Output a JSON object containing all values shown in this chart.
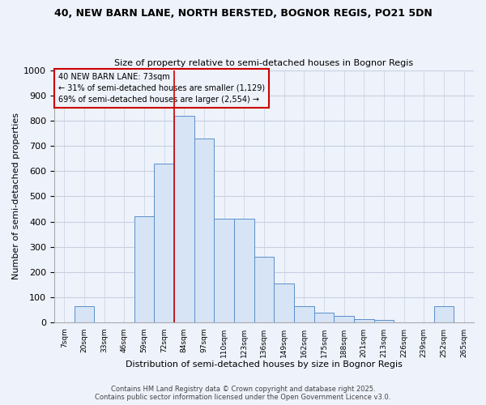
{
  "title1": "40, NEW BARN LANE, NORTH BERSTED, BOGNOR REGIS, PO21 5DN",
  "title2": "Size of property relative to semi-detached houses in Bognor Regis",
  "xlabel": "Distribution of semi-detached houses by size in Bognor Regis",
  "ylabel": "Number of semi-detached properties",
  "annotation_title": "40 NEW BARN LANE: 73sqm",
  "annotation_line1": "← 31% of semi-detached houses are smaller (1,129)",
  "annotation_line2": "69% of semi-detached houses are larger (2,554) →",
  "footer": "Contains HM Land Registry data © Crown copyright and database right 2025.\nContains public sector information licensed under the Open Government Licence v3.0.",
  "bar_labels": [
    "7sqm",
    "20sqm",
    "33sqm",
    "46sqm",
    "59sqm",
    "72sqm",
    "84sqm",
    "97sqm",
    "110sqm",
    "123sqm",
    "136sqm",
    "149sqm",
    "162sqm",
    "175sqm",
    "188sqm",
    "201sqm",
    "213sqm",
    "226sqm",
    "239sqm",
    "252sqm",
    "265sqm"
  ],
  "bar_values": [
    0,
    65,
    0,
    0,
    420,
    630,
    820,
    730,
    410,
    410,
    260,
    155,
    65,
    40,
    25,
    15,
    10,
    0,
    0,
    65,
    0
  ],
  "bar_color": "#d6e4f5",
  "bar_edge_color": "#5b8fc9",
  "vline_x": 5.5,
  "vline_color": "#cc0000",
  "ylim": [
    0,
    1000
  ],
  "yticks": [
    0,
    100,
    200,
    300,
    400,
    500,
    600,
    700,
    800,
    900,
    1000
  ],
  "annotation_box_color": "#cc0000",
  "bg_color": "#eef2fb",
  "grid_color": "#c8d0e0"
}
